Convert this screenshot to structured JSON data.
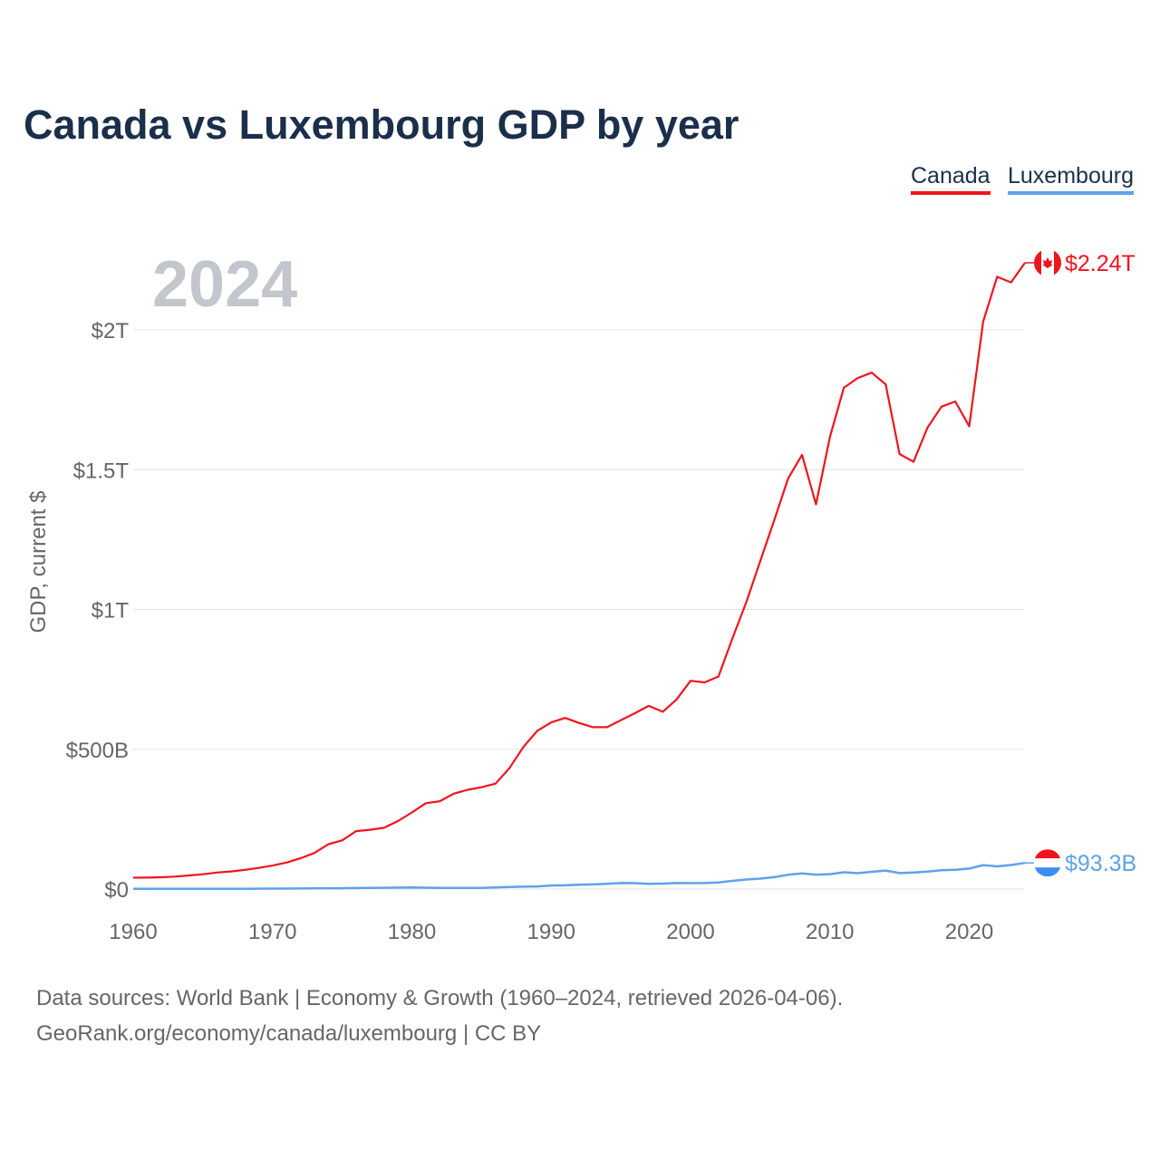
{
  "title": "Canada vs Luxembourg GDP by year",
  "footer": {
    "line1": "Data sources: World Bank | Economy & Growth (1960–2024, retrieved 2026-04-06).",
    "line2": "GeoRank.org/economy/canada/luxembourg | CC BY"
  },
  "chart_data": {
    "type": "line",
    "title": "Canada vs Luxembourg GDP by year",
    "ylabel": "GDP, current $",
    "xlabel": "",
    "year_label": "2024",
    "xlim": [
      1960,
      2024
    ],
    "ylim": [
      0,
      2300
    ],
    "y_unit": "billion USD",
    "x_ticks": [
      1960,
      1970,
      1980,
      1990,
      2000,
      2010,
      2020
    ],
    "y_ticks": [
      {
        "v": 0,
        "label": "$0"
      },
      {
        "v": 500,
        "label": "$500B"
      },
      {
        "v": 1000,
        "label": "$1T"
      },
      {
        "v": 1500,
        "label": "$1.5T"
      },
      {
        "v": 2000,
        "label": "$2T"
      }
    ],
    "grid": true,
    "legend": "top-right",
    "colors": {
      "Canada": "#f0141e",
      "Luxembourg": "#5ea2ea"
    },
    "series": [
      {
        "name": "Canada",
        "end_label": "$2.24T",
        "values": [
          40.5,
          40.9,
          42.2,
          44.4,
          48.5,
          52.9,
          58.9,
          62.9,
          68.4,
          75.5,
          84,
          94.8,
          110,
          129,
          160,
          174,
          207,
          212,
          219,
          243,
          274,
          307,
          314,
          341,
          355,
          364,
          377,
          432,
          508,
          566,
          596,
          612,
          594,
          579,
          579,
          604,
          629,
          655,
          634,
          678,
          745,
          739,
          760,
          896,
          1026,
          1173,
          1319,
          1468,
          1553,
          1376,
          1617,
          1793,
          1828,
          1847,
          1805,
          1556,
          1528,
          1650,
          1725,
          1744,
          1655,
          2030,
          2190,
          2170,
          2240
        ]
      },
      {
        "name": "Luxembourg",
        "end_label": "$93.3B",
        "values": [
          0.7,
          0.72,
          0.74,
          0.79,
          0.87,
          0.94,
          0.97,
          1.03,
          1.11,
          1.26,
          1.47,
          1.55,
          1.87,
          2.47,
          2.9,
          3.07,
          3.42,
          3.86,
          4.5,
          5.31,
          5.76,
          4.95,
          4.37,
          4.18,
          4.04,
          4.18,
          5.91,
          7.56,
          8.43,
          9.31,
          12.7,
          13.3,
          15.4,
          16.5,
          18.4,
          21.4,
          21.1,
          18.8,
          19.6,
          21.5,
          21.2,
          21.3,
          23.7,
          29.2,
          34,
          37.3,
          42.4,
          50.9,
          55.8,
          51.4,
          53.2,
          60.1,
          56.7,
          61.7,
          66,
          57.2,
          59.1,
          62.2,
          67.2,
          68.7,
          73.3,
          85.5,
          81,
          85.8,
          93.3
        ]
      }
    ]
  }
}
